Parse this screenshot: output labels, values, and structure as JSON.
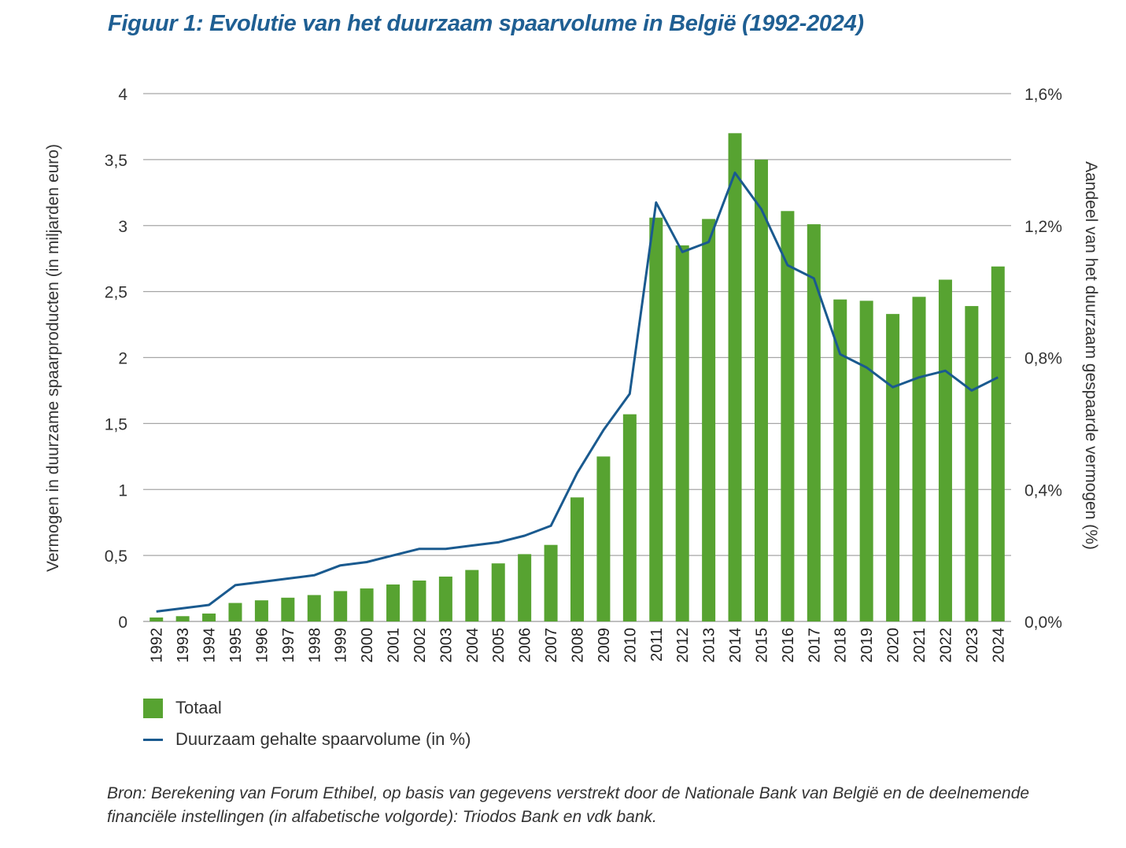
{
  "chart_data": {
    "type": "bar",
    "title": "Figuur 1: Evolutie van het duurzaam spaarvolume in België (1992-2024)",
    "categories": [
      "1992",
      "1993",
      "1994",
      "1995",
      "1996",
      "1997",
      "1998",
      "1999",
      "2000",
      "2001",
      "2002",
      "2003",
      "2004",
      "2005",
      "2006",
      "2007",
      "2008",
      "2009",
      "2010",
      "2011",
      "2012",
      "2013",
      "2014",
      "2015",
      "2016",
      "2017",
      "2018",
      "2019",
      "2020",
      "2021",
      "2022",
      "2023",
      "2024"
    ],
    "series": [
      {
        "name": "Totaal",
        "type": "bar",
        "axis": "left",
        "color": "#57a331",
        "values": [
          0.03,
          0.04,
          0.06,
          0.14,
          0.16,
          0.18,
          0.2,
          0.23,
          0.25,
          0.28,
          0.31,
          0.34,
          0.39,
          0.44,
          0.51,
          0.58,
          0.94,
          1.25,
          1.57,
          3.06,
          2.85,
          3.05,
          3.7,
          3.5,
          3.11,
          3.01,
          2.44,
          2.43,
          2.33,
          2.46,
          2.59,
          2.39,
          2.69
        ]
      },
      {
        "name": "Duurzaam gehalte spaarvolume (in %)",
        "type": "line",
        "axis": "right",
        "color": "#1a5a8f",
        "values": [
          0.03,
          0.04,
          0.05,
          0.11,
          0.12,
          0.13,
          0.14,
          0.17,
          0.18,
          0.2,
          0.22,
          0.22,
          0.23,
          0.24,
          0.26,
          0.29,
          0.45,
          0.58,
          0.69,
          1.27,
          1.12,
          1.15,
          1.36,
          1.25,
          1.08,
          1.04,
          0.81,
          0.77,
          0.71,
          0.74,
          0.76,
          0.7,
          0.74
        ]
      }
    ],
    "ylabel": "Vermogen in duurzame spaarproducten (in miljarden euro)",
    "y2label": "Aandeel van het duurzaam gespaarde vermogen (%)",
    "ylim": [
      0,
      4
    ],
    "y2lim": [
      0,
      1.6
    ],
    "yticks": [
      0,
      0.5,
      1,
      1.5,
      2,
      2.5,
      3,
      3.5,
      4
    ],
    "ytick_labels": [
      "0",
      "0,5",
      "1",
      "1,5",
      "2",
      "2,5",
      "3",
      "3,5",
      "4"
    ],
    "y2ticks": [
      0,
      0.4,
      0.8,
      1.2,
      1.6
    ],
    "y2tick_labels": [
      "0,0%",
      "0,4%",
      "0,8%",
      "1,2%",
      "1,6%"
    ],
    "grid": true,
    "legend_position": "bottom-left"
  },
  "legend": {
    "items": [
      {
        "label": "Totaal",
        "kind": "bar"
      },
      {
        "label": "Duurzaam gehalte spaarvolume (in %)",
        "kind": "line"
      }
    ]
  },
  "source": "Bron: Berekening van Forum Ethibel, op basis van gegevens verstrekt door de Nationale Bank van België en de deelnemende financiële instellingen (in alfabetische volgorde): Triodos Bank en vdk bank."
}
